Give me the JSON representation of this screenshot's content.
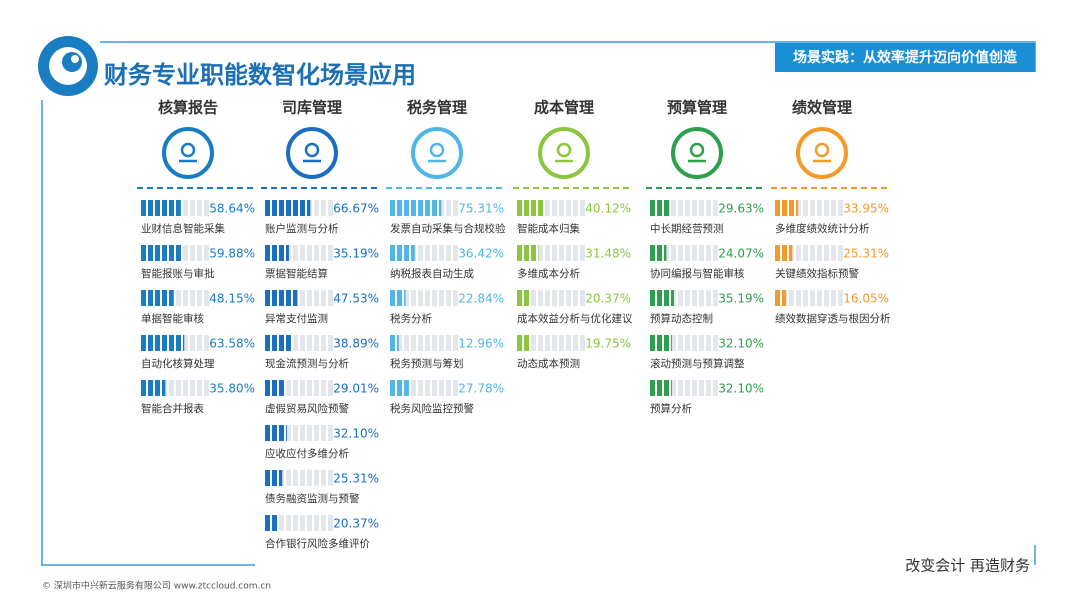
{
  "header": {
    "title": "财务专业职能数智化场景应用",
    "tag": "场景实践：从效率提升迈向价值创造"
  },
  "columns": [
    {
      "title": "核算报告",
      "color": "#1a7cc1",
      "items": [
        {
          "label": "业财信息智能采集",
          "value": 58.64,
          "value_label": "58.64%"
        },
        {
          "label": "智能报账与审批",
          "value": 59.88,
          "value_label": "59.88%"
        },
        {
          "label": "单据智能审核",
          "value": 48.15,
          "value_label": "48.15%"
        },
        {
          "label": "自动化核算处理",
          "value": 63.58,
          "value_label": "63.58%"
        },
        {
          "label": "智能合并报表",
          "value": 35.8,
          "value_label": "35.80%"
        }
      ]
    },
    {
      "title": "司库管理",
      "color": "#1a6fc0",
      "items": [
        {
          "label": "账户监测与分析",
          "value": 66.67,
          "value_label": "66.67%"
        },
        {
          "label": "票据智能结算",
          "value": 35.19,
          "value_label": "35.19%"
        },
        {
          "label": "异常支付监测",
          "value": 47.53,
          "value_label": "47.53%"
        },
        {
          "label": "现金流预测与分析",
          "value": 38.89,
          "value_label": "38.89%"
        },
        {
          "label": "虚假贸易风险预警",
          "value": 29.01,
          "value_label": "29.01%"
        },
        {
          "label": "应收应付多维分析",
          "value": 32.1,
          "value_label": "32.10%"
        },
        {
          "label": "债务融资监测与预警",
          "value": 25.31,
          "value_label": "25.31%"
        },
        {
          "label": "合作银行风险多维评价",
          "value": 20.37,
          "value_label": "20.37%"
        }
      ]
    },
    {
      "title": "税务管理",
      "color": "#4fb6e6",
      "items": [
        {
          "label": "发票自动采集与合规校验",
          "value": 75.31,
          "value_label": "75.31%"
        },
        {
          "label": "纳税报表自动生成",
          "value": 36.42,
          "value_label": "36.42%"
        },
        {
          "label": "税务分析",
          "value": 22.84,
          "value_label": "22.84%"
        },
        {
          "label": "税务预测与筹划",
          "value": 12.96,
          "value_label": "12.96%"
        },
        {
          "label": "税务风险监控预警",
          "value": 27.78,
          "value_label": "27.78%"
        }
      ]
    },
    {
      "title": "成本管理",
      "color": "#8cc63f",
      "items": [
        {
          "label": "智能成本归集",
          "value": 40.12,
          "value_label": "40.12%"
        },
        {
          "label": "多维成本分析",
          "value": 31.48,
          "value_label": "31.48%"
        },
        {
          "label": "成本效益分析与优化建议",
          "value": 20.37,
          "value_label": "20.37%"
        },
        {
          "label": "动态成本预测",
          "value": 19.75,
          "value_label": "19.75%"
        }
      ]
    },
    {
      "title": "预算管理",
      "color": "#2e9e4f",
      "items": [
        {
          "label": "中长期经营预测",
          "value": 29.63,
          "value_label": "29.63%"
        },
        {
          "label": "协同编报与智能审核",
          "value": 24.07,
          "value_label": "24.07%"
        },
        {
          "label": "预算动态控制",
          "value": 35.19,
          "value_label": "35.19%"
        },
        {
          "label": "滚动预测与预算调整",
          "value": 32.1,
          "value_label": "32.10%"
        },
        {
          "label": "预算分析",
          "value": 32.1,
          "value_label": "32.10%"
        }
      ]
    },
    {
      "title": "绩效管理",
      "color": "#f39a2a",
      "items": [
        {
          "label": "多维度绩效统计分析",
          "value": 33.95,
          "value_label": "33.95%"
        },
        {
          "label": "关键绩效指标预警",
          "value": 25.31,
          "value_label": "25.31%"
        },
        {
          "label": "绩效数据穿透与根因分析",
          "value": 16.05,
          "value_label": "16.05%"
        }
      ]
    }
  ],
  "footer": {
    "copyright": "© 深圳市中兴新云服务有限公司  www.ztccloud.com.cn",
    "slogan": "改变会计  再造财务"
  }
}
